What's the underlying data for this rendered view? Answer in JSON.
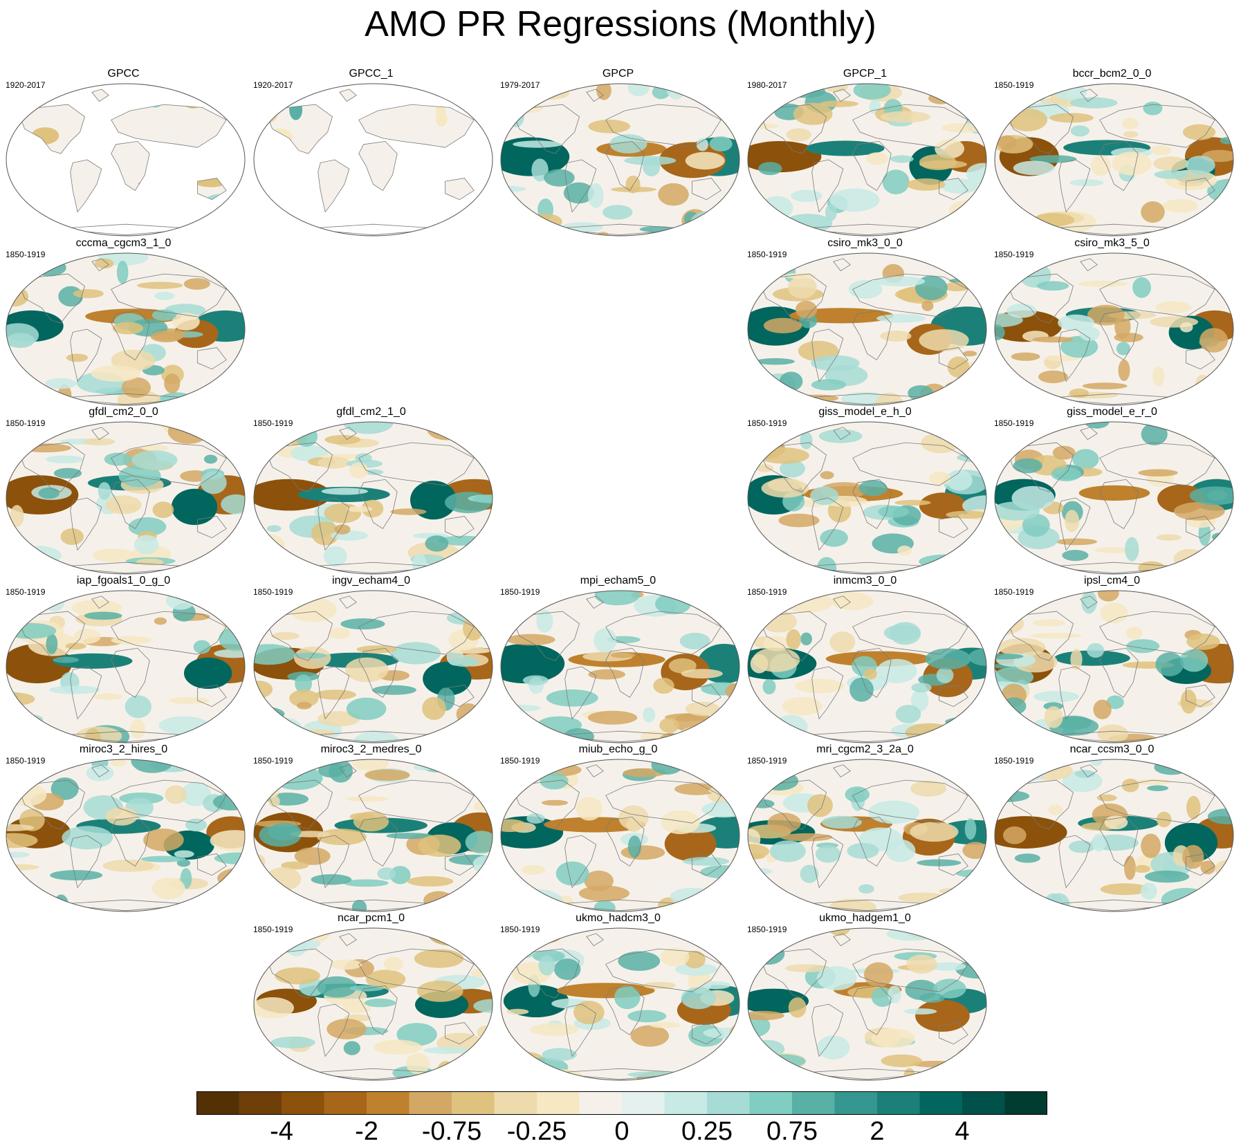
{
  "chart_data": {
    "type": "heatmap",
    "title": "AMO PR Regressions (Monthly)",
    "colorbar": {
      "colors": [
        "#543005",
        "#6f3f09",
        "#8c510a",
        "#a7661a",
        "#bf812d",
        "#d3a864",
        "#dfc27d",
        "#eddaad",
        "#f6e8c3",
        "#f5f1ea",
        "#e5f1ef",
        "#c7eae5",
        "#a6dcd5",
        "#80cdc1",
        "#59b0a4",
        "#35978f",
        "#1b8178",
        "#01665e",
        "#00514a",
        "#003c30"
      ],
      "tick_labels": [
        "-4",
        "-2",
        "-0.75",
        "-0.25",
        "0",
        "0.25",
        "0.75",
        "2",
        "4"
      ]
    },
    "panels": [
      {
        "name": "GPCC",
        "years": "1920-2017",
        "col": 0,
        "row": 0,
        "kind": "land"
      },
      {
        "name": "GPCC_1",
        "years": "1920-2017",
        "col": 1,
        "row": 0,
        "kind": "land"
      },
      {
        "name": "GPCP",
        "years": "1979-2017",
        "col": 2,
        "row": 0,
        "kind": "full"
      },
      {
        "name": "GPCP_1",
        "years": "1980-2017",
        "col": 3,
        "row": 0,
        "kind": "full"
      },
      {
        "name": "bccr_bcm2_0_0",
        "years": "1850-1919",
        "col": 4,
        "row": 0,
        "kind": "full"
      },
      {
        "name": "cccma_cgcm3_1_0",
        "years": "1850-1919",
        "col": 0,
        "row": 1,
        "kind": "full"
      },
      {
        "name": "csiro_mk3_0_0",
        "years": "1850-1919",
        "col": 3,
        "row": 1,
        "kind": "full"
      },
      {
        "name": "csiro_mk3_5_0",
        "years": "1850-1919",
        "col": 4,
        "row": 1,
        "kind": "full"
      },
      {
        "name": "gfdl_cm2_0_0",
        "years": "1850-1919",
        "col": 0,
        "row": 2,
        "kind": "full"
      },
      {
        "name": "gfdl_cm2_1_0",
        "years": "1850-1919",
        "col": 1,
        "row": 2,
        "kind": "full"
      },
      {
        "name": "giss_model_e_h_0",
        "years": "1850-1919",
        "col": 3,
        "row": 2,
        "kind": "full"
      },
      {
        "name": "giss_model_e_r_0",
        "years": "1850-1919",
        "col": 4,
        "row": 2,
        "kind": "full"
      },
      {
        "name": "iap_fgoals1_0_g_0",
        "years": "1850-1919",
        "col": 0,
        "row": 3,
        "kind": "full"
      },
      {
        "name": "ingv_echam4_0",
        "years": "1850-1919",
        "col": 1,
        "row": 3,
        "kind": "full"
      },
      {
        "name": "mpi_echam5_0",
        "years": "1850-1919",
        "col": 2,
        "row": 3,
        "kind": "full"
      },
      {
        "name": "inmcm3_0_0",
        "years": "1850-1919",
        "col": 3,
        "row": 3,
        "kind": "full"
      },
      {
        "name": "ipsl_cm4_0",
        "years": "1850-1919",
        "col": 4,
        "row": 3,
        "kind": "full"
      },
      {
        "name": "miroc3_2_hires_0",
        "years": "1850-1919",
        "col": 0,
        "row": 4,
        "kind": "full"
      },
      {
        "name": "miroc3_2_medres_0",
        "years": "1850-1919",
        "col": 1,
        "row": 4,
        "kind": "full"
      },
      {
        "name": "miub_echo_g_0",
        "years": "1850-1919",
        "col": 2,
        "row": 4,
        "kind": "full"
      },
      {
        "name": "mri_cgcm2_3_2a_0",
        "years": "1850-1919",
        "col": 3,
        "row": 4,
        "kind": "full"
      },
      {
        "name": "ncar_ccsm3_0_0",
        "years": "1850-1919",
        "col": 4,
        "row": 4,
        "kind": "full"
      },
      {
        "name": "ncar_pcm1_0",
        "years": "1850-1919",
        "col": 1,
        "row": 5,
        "kind": "full"
      },
      {
        "name": "ukmo_hadcm3_0",
        "years": "1850-1919",
        "col": 2,
        "row": 5,
        "kind": "full"
      },
      {
        "name": "ukmo_hadgem1_0",
        "years": "1850-1919",
        "col": 3,
        "row": 5,
        "kind": "full"
      }
    ]
  }
}
